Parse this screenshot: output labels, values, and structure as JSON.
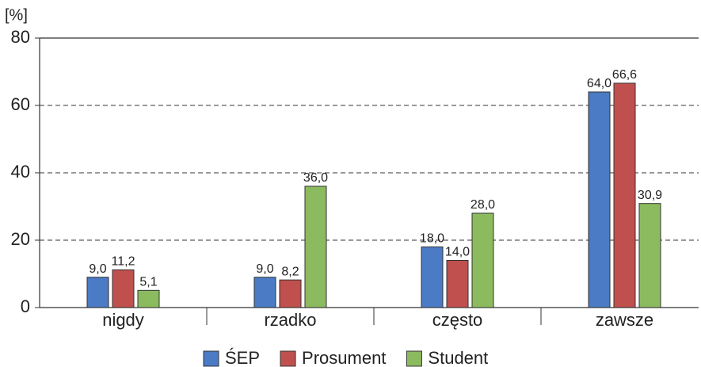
{
  "chart_data": {
    "type": "bar",
    "y_label": "[%]",
    "categories": [
      "nigdy",
      "rzadko",
      "często",
      "zawsze"
    ],
    "series": [
      {
        "name": "ŚEP",
        "color": "#4a7bc4",
        "values": [
          9.0,
          9.0,
          18.0,
          64.0
        ],
        "value_labels": [
          "9,0",
          "9,0",
          "18,0",
          "64,0"
        ]
      },
      {
        "name": "Prosument",
        "color": "#c0504d",
        "values": [
          11.2,
          8.2,
          14.0,
          66.6
        ],
        "value_labels": [
          "11,2",
          "8,2",
          "14,0",
          "66,6"
        ]
      },
      {
        "name": "Student",
        "color": "#8bbb5e",
        "values": [
          5.1,
          36.0,
          28.0,
          30.9
        ],
        "value_labels": [
          "5,1",
          "36,0",
          "28,0",
          "30,9"
        ]
      }
    ],
    "ylim": [
      0,
      80
    ],
    "yticks": [
      0,
      20,
      40,
      60,
      80
    ],
    "grid": true,
    "legend": "bottom"
  }
}
